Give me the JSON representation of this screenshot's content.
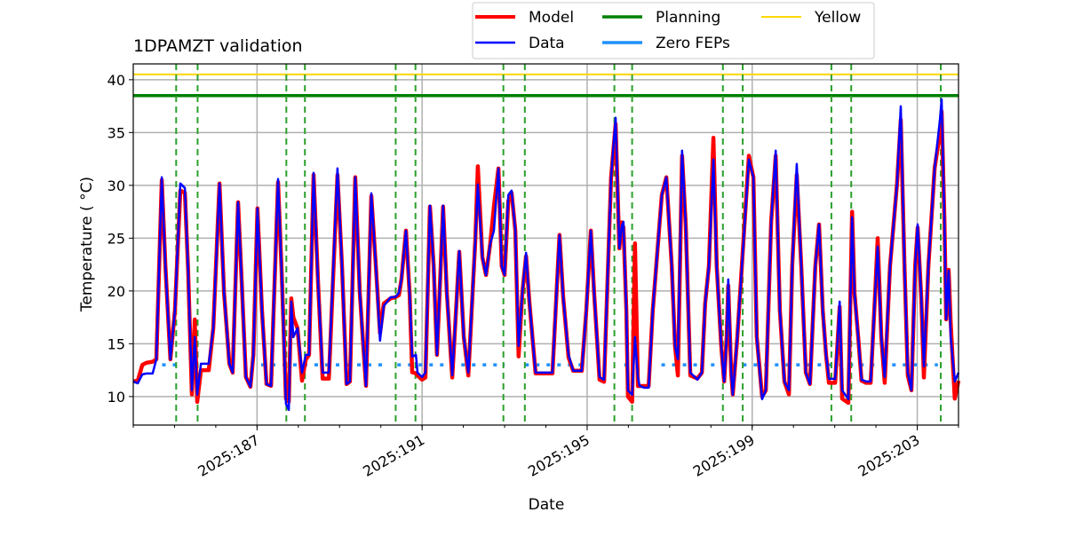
{
  "chart_data": {
    "type": "line",
    "title": "1DPAMZT validation",
    "xlabel": "Date",
    "ylabel": "Temperature ($^\\circ$C)",
    "ylabel_display": "Temperature ( °C)",
    "xlim": [
      184.0,
      204.0
    ],
    "ylim": [
      7.3,
      41.5
    ],
    "grid": true,
    "legend_placement": "top-right, above axes, 3 columns",
    "x_major_ticks": [
      187,
      191,
      195,
      199,
      203
    ],
    "x_tick_labels": [
      "2025:187",
      "2025:191",
      "2025:195",
      "2025:199",
      "2025:203"
    ],
    "x_minor_tick_step": 1,
    "y_ticks": [
      10,
      15,
      20,
      25,
      30,
      35,
      40
    ],
    "y_tick_labels": [
      "10",
      "15",
      "20",
      "25",
      "30",
      "35",
      "40"
    ],
    "legend": [
      {
        "label": "Model",
        "color": "#ff0000"
      },
      {
        "label": "Data",
        "color": "#0000ff"
      },
      {
        "label": "Planning",
        "color": "#008000"
      },
      {
        "label": "Zero FEPs",
        "color": "#1e90ff"
      },
      {
        "label": "Yellow",
        "color": "#ffd700"
      }
    ],
    "planning_limit": 38.5,
    "yellow_limit": 40.5,
    "zero_feps_level": 13.0,
    "zero_feps_segments": [
      [
        184.7,
        185.1
      ],
      [
        187.1,
        190.2
      ],
      [
        190.4,
        193.0
      ],
      [
        193.5,
        195.0
      ],
      [
        195.9,
        196.1
      ],
      [
        196.8,
        197.7
      ],
      [
        198.0,
        203.5
      ]
    ],
    "vertical_markers": [
      185.04,
      185.56,
      187.71,
      188.16,
      190.36,
      190.84,
      192.97,
      193.49,
      195.66,
      196.09,
      198.29,
      198.77,
      200.92,
      201.4,
      203.57
    ],
    "x": [
      184.0,
      184.11,
      184.22,
      184.32,
      184.47,
      184.56,
      184.69,
      184.78,
      184.9,
      185.01,
      185.14,
      185.25,
      185.33,
      185.42,
      185.49,
      185.55,
      185.64,
      185.83,
      185.94,
      186.09,
      186.2,
      186.33,
      186.41,
      186.54,
      186.63,
      186.73,
      186.84,
      186.91,
      187.01,
      187.12,
      187.23,
      187.34,
      187.51,
      187.6,
      187.7,
      187.77,
      187.83,
      187.88,
      187.98,
      188.09,
      188.18,
      188.26,
      188.37,
      188.48,
      188.59,
      188.74,
      188.95,
      189.06,
      189.17,
      189.25,
      189.38,
      189.49,
      189.64,
      189.77,
      189.88,
      189.98,
      190.07,
      190.24,
      190.35,
      190.44,
      190.5,
      190.61,
      190.7,
      190.76,
      190.85,
      190.89,
      191.0,
      191.08,
      191.19,
      191.28,
      191.36,
      191.45,
      191.51,
      191.6,
      191.73,
      191.81,
      191.9,
      192.01,
      192.12,
      192.29,
      192.35,
      192.46,
      192.55,
      192.65,
      192.74,
      192.85,
      192.93,
      193.0,
      193.09,
      193.17,
      193.26,
      193.34,
      193.43,
      193.52,
      193.6,
      193.75,
      194.01,
      194.16,
      194.33,
      194.42,
      194.55,
      194.66,
      194.87,
      194.98,
      195.09,
      195.17,
      195.3,
      195.41,
      195.58,
      195.69,
      195.78,
      195.84,
      195.88,
      195.95,
      195.99,
      196.09,
      196.16,
      196.23,
      196.27,
      196.38,
      196.49,
      196.59,
      196.81,
      196.92,
      197.05,
      197.13,
      197.2,
      197.3,
      197.39,
      197.5,
      197.67,
      197.78,
      197.86,
      197.95,
      198.06,
      198.14,
      198.25,
      198.32,
      198.38,
      198.42,
      198.49,
      198.53,
      198.64,
      198.92,
      199.03,
      199.11,
      199.24,
      199.33,
      199.46,
      199.57,
      199.67,
      199.78,
      199.89,
      199.97,
      200.08,
      200.19,
      200.3,
      200.4,
      200.53,
      200.62,
      200.71,
      200.79,
      200.86,
      201.01,
      201.07,
      201.12,
      201.18,
      201.33,
      201.42,
      201.48,
      201.57,
      201.65,
      201.76,
      201.87,
      201.98,
      202.04,
      202.13,
      202.21,
      202.34,
      202.51,
      202.6,
      202.69,
      202.77,
      202.86,
      202.95,
      203.01,
      203.1,
      203.16,
      203.27,
      203.42,
      203.55,
      203.59,
      203.66,
      203.7,
      203.76,
      203.81,
      203.91,
      204.0
    ],
    "series": [
      {
        "name": "Model",
        "values": [
          11.43,
          11.5,
          13.0,
          13.2,
          13.3,
          13.53,
          30.5,
          22.35,
          13.53,
          18.15,
          29.5,
          29.3,
          21.93,
          10.2,
          17.3,
          9.5,
          12.5,
          12.5,
          16.47,
          30.17,
          19.83,
          13.11,
          12.27,
          28.4,
          20.67,
          11.85,
          10.92,
          13.95,
          27.82,
          18.15,
          11.18,
          11.01,
          30.3,
          21.51,
          9.8,
          9.5,
          19.3,
          17.5,
          16.47,
          11.5,
          13.5,
          13.95,
          31.0,
          20.67,
          11.7,
          11.7,
          31.0,
          22.35,
          11.18,
          11.43,
          30.76,
          19.83,
          11.01,
          29.0,
          22.35,
          16.0,
          18.8,
          19.3,
          19.41,
          19.6,
          21.09,
          25.71,
          19.58,
          12.3,
          12.2,
          12.0,
          11.6,
          11.8,
          28.0,
          22.35,
          13.95,
          22.35,
          28.0,
          19.83,
          11.8,
          17.31,
          23.7,
          15.63,
          12.0,
          24.87,
          31.8,
          23.19,
          21.51,
          24.45,
          28.0,
          31.6,
          22.35,
          21.51,
          28.5,
          29.3,
          25.71,
          13.8,
          19.83,
          23.3,
          18.99,
          12.2,
          12.2,
          12.2,
          25.3,
          19.41,
          13.7,
          12.44,
          12.44,
          18.15,
          25.71,
          19.83,
          11.6,
          11.4,
          30.76,
          35.8,
          24.03,
          26.5,
          26.0,
          18.15,
          10.0,
          9.5,
          24.5,
          11.0,
          11.0,
          11.0,
          11.0,
          18.15,
          29.08,
          30.76,
          22.35,
          14.79,
          12.0,
          32.8,
          26.13,
          12.0,
          11.7,
          12.27,
          18.82,
          22.35,
          34.5,
          22.35,
          14.79,
          11.43,
          15.63,
          20.5,
          12.27,
          10.2,
          15.63,
          32.8,
          30.76,
          15.63,
          10.0,
          10.59,
          26.55,
          32.8,
          18.15,
          11.43,
          10.2,
          22.35,
          31.0,
          22.35,
          12.27,
          11.18,
          22.35,
          26.3,
          18.15,
          13.95,
          11.3,
          11.3,
          15.21,
          18.5,
          9.8,
          9.4,
          27.5,
          19.83,
          15.63,
          11.5,
          11.3,
          11.3,
          19.83,
          25.0,
          15.63,
          11.3,
          22.35,
          30.17,
          36.2,
          22.35,
          12.0,
          10.59,
          22.35,
          26.0,
          19.15,
          11.8,
          22.35,
          31.6,
          35.0,
          37.0,
          26.55,
          17.31,
          22.0,
          17.0,
          9.8,
          11.5
        ]
      },
      {
        "name": "Data",
        "values": [
          11.43,
          11.26,
          12.1,
          12.18,
          12.18,
          13.53,
          30.76,
          22.35,
          13.53,
          18.15,
          30.17,
          29.75,
          21.93,
          10.59,
          15.63,
          10.17,
          13.11,
          13.11,
          16.47,
          30.17,
          19.83,
          13.11,
          12.27,
          28.4,
          20.67,
          11.85,
          10.92,
          13.95,
          27.82,
          18.15,
          11.18,
          11.01,
          30.59,
          21.51,
          9.33,
          8.74,
          18.99,
          15.63,
          16.47,
          12.27,
          13.95,
          13.95,
          31.18,
          20.67,
          12.27,
          12.27,
          31.6,
          22.35,
          11.18,
          11.43,
          30.76,
          19.83,
          11.01,
          29.24,
          22.35,
          15.29,
          18.57,
          19.41,
          19.41,
          19.83,
          21.09,
          25.71,
          19.58,
          13.78,
          13.95,
          12.27,
          11.85,
          12.27,
          28.07,
          22.35,
          13.95,
          22.35,
          28.07,
          19.83,
          12.02,
          17.31,
          23.78,
          15.63,
          12.27,
          24.87,
          30.08,
          23.19,
          21.51,
          24.45,
          25.71,
          31.6,
          22.35,
          21.51,
          29.08,
          29.5,
          25.71,
          14.79,
          19.83,
          23.61,
          18.99,
          12.27,
          12.27,
          12.27,
          25.29,
          19.41,
          13.95,
          12.44,
          12.44,
          18.15,
          25.71,
          19.83,
          11.85,
          11.6,
          30.76,
          36.39,
          24.03,
          26.13,
          26.55,
          18.15,
          10.59,
          10.17,
          15.63,
          11.85,
          11.01,
          10.84,
          10.84,
          18.15,
          29.08,
          30.76,
          22.35,
          14.79,
          13.53,
          33.28,
          26.13,
          12.27,
          11.6,
          12.27,
          18.82,
          22.35,
          32.44,
          22.35,
          14.79,
          11.43,
          15.63,
          21.09,
          12.27,
          10.17,
          15.63,
          32.44,
          30.76,
          15.63,
          9.75,
          10.59,
          26.55,
          33.28,
          18.15,
          11.43,
          10.59,
          22.35,
          32.02,
          22.35,
          12.27,
          11.18,
          22.35,
          26.3,
          18.15,
          13.95,
          11.68,
          11.68,
          15.21,
          18.99,
          10.59,
          9.75,
          26.97,
          19.83,
          15.63,
          11.6,
          11.43,
          11.43,
          19.83,
          24.2,
          15.63,
          11.85,
          22.35,
          30.17,
          37.48,
          22.35,
          12.27,
          10.59,
          22.35,
          26.3,
          19.15,
          12.86,
          22.35,
          31.6,
          36.22,
          38.15,
          26.55,
          17.31,
          21.93,
          15.63,
          11.43,
          12.27
        ]
      }
    ]
  }
}
